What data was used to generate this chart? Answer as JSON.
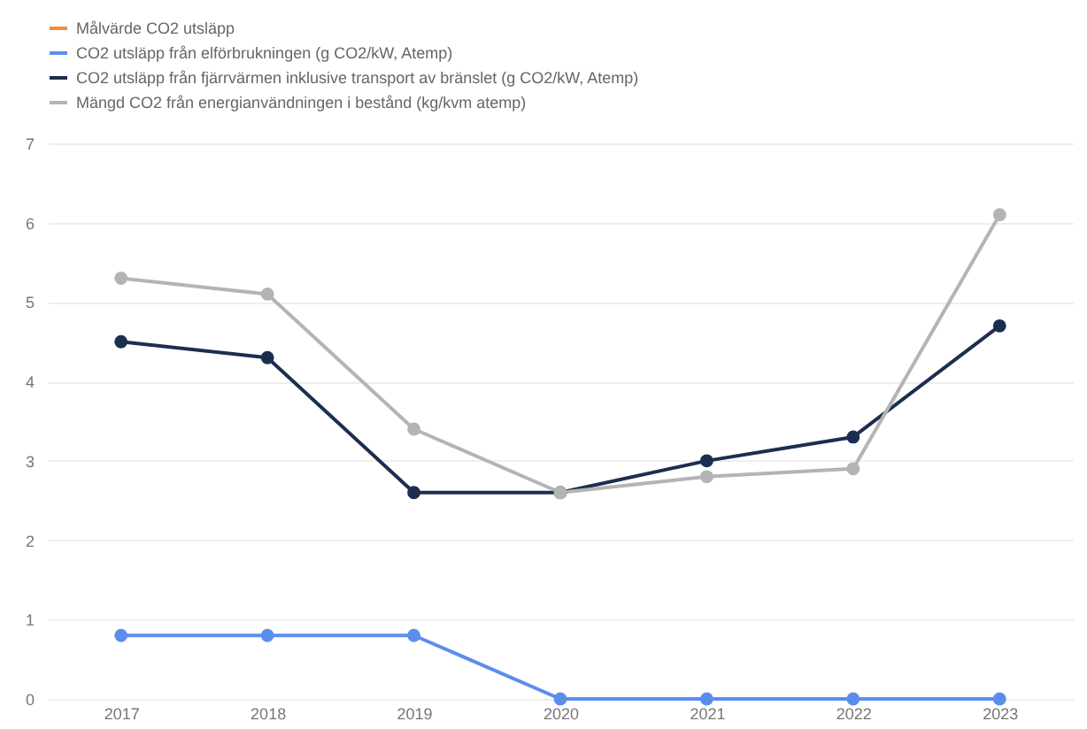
{
  "chart_data": {
    "type": "line",
    "categories": [
      "2017",
      "2018",
      "2019",
      "2020",
      "2021",
      "2022",
      "2023"
    ],
    "series": [
      {
        "name": "Målvärde CO2 utsläpp",
        "color": "#f28c38",
        "values": [
          null,
          null,
          null,
          null,
          null,
          null,
          null
        ]
      },
      {
        "name": "CO2 utsläpp från elförbrukningen (g CO2/kW, Atemp)",
        "color": "#5b8def",
        "values": [
          0.8,
          0.8,
          0.8,
          0,
          0,
          0,
          0
        ]
      },
      {
        "name": "CO2 utsläpp från fjärrvärmen inklusive transport av bränslet (g CO2/kW, Atemp)",
        "color": "#1c2e50",
        "values": [
          4.5,
          4.3,
          2.6,
          2.6,
          3.0,
          3.3,
          4.7
        ]
      },
      {
        "name": "Mängd CO2 från energianvändningen i bestånd (kg/kvm atemp)",
        "color": "#b4b4b4",
        "values": [
          5.3,
          5.1,
          3.4,
          2.6,
          2.8,
          2.9,
          6.1
        ]
      }
    ],
    "ylim": [
      0,
      7
    ],
    "yticks": [
      0,
      1,
      2,
      3,
      4,
      5,
      6,
      7
    ],
    "grid": "y",
    "legend": "top left",
    "marker": "circle",
    "line_style": "solid"
  }
}
